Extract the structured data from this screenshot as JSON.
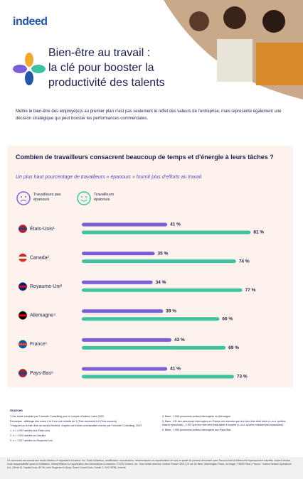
{
  "brand": "indeed",
  "header": {
    "title_lines": [
      "Bien-être au travail :",
      "la clé pour booster la",
      "productivité des talents"
    ]
  },
  "intro": "Mettre le bien-être des employé(e)s au premier plan n'est pas seulement le reflet des valeurs de l'entreprise, mais représente également une décision stratégique qui peut booster les performances commerciales.",
  "chart_data": {
    "type": "hbar",
    "title": "Combien de travailleurs consacrent beaucoup de temps et d'énergie à leurs tâches ?",
    "subtitle": "Un plus haut pourcentage de travailleurs « épanouis » fournit plus d'efforts au travail.",
    "categories": [
      "États-Unis¹",
      "Canada²",
      "Royaume-Uni³",
      "Allemagne⁴",
      "France⁵",
      "Pays-Bas⁶"
    ],
    "series": [
      {
        "name": "Travailleurs pas épanouis",
        "color": "#7b5fd9",
        "values": [
          41,
          35,
          34,
          39,
          43,
          41
        ],
        "value_labels": [
          "41 %",
          "35 %",
          "34 %",
          "39 %",
          "43 %",
          "41 %"
        ]
      },
      {
        "name": "Travailleurs épanouis",
        "color": "#3dc39f",
        "values": [
          81,
          74,
          77,
          66,
          69,
          73
        ],
        "value_labels": [
          "81 %",
          "74 %",
          "77 %",
          "66 %",
          "69 %",
          "73 %"
        ]
      }
    ]
  },
  "sources": {
    "heading": "Sources",
    "left": [
      "¹ Une étude conduite par Forrester Consulting pour le compte d'Indeed, mars 2023.",
      "Remarque : affichage des notes 4 et 5 sur une échelle de 1 (Très rarement) à 5 (Très souvent)",
      "¹ Rapport sur le bien-être au travail d'Indeed, d'après une étude commanditée menée par Forrester Consulting, 2023",
      "1. n = 4 002 adultes aux États-Unis",
      "2. n = 1 510 adultes au Canada",
      "3. n = 1 517 adultes au Royaume-Uni"
    ],
    "right": [
      "4. Base : 1 506 personnes actives interrogées en Allemagne.",
      "5. Base : 411 des personnes interrogées en France ont répondu que leur bien-être était élevé (c.-à-d. qu'elles étaient épanouies) ; 1 097 que leur bien-être était faible à modéré (c.-à-d. qu'elles n'étaient pas épanouies).",
      "6. Base : 1 504 personnes actives interrogées aux Pays-Bas."
    ]
  },
  "footer": "Ce document est soumis aux droits d'auteur et appartient à Indeed, Inc. Toute utilisation, modification, reproduction, retransmission ou republication de tout ou partie du présent document sans l'accord écrit d'Indeed est expressément interdite. Indeed décline toute responsabilité quant à l'utilisation, l'interprétation ou l'application des informations ci-incluses. © 2024 Indeed, Inc. Tous droits réservés. Indeed France SAS | 29 rue de Berri, Washington Plaza, 4e étage | 75008 Paris | France · Indeed Ireland Operations Ltd. | Block B, Capital Dock, 80 Sir John Rogerson's Quay, Grand Canal Dock, Dublin 2, D02 HE38 | Irlande"
}
